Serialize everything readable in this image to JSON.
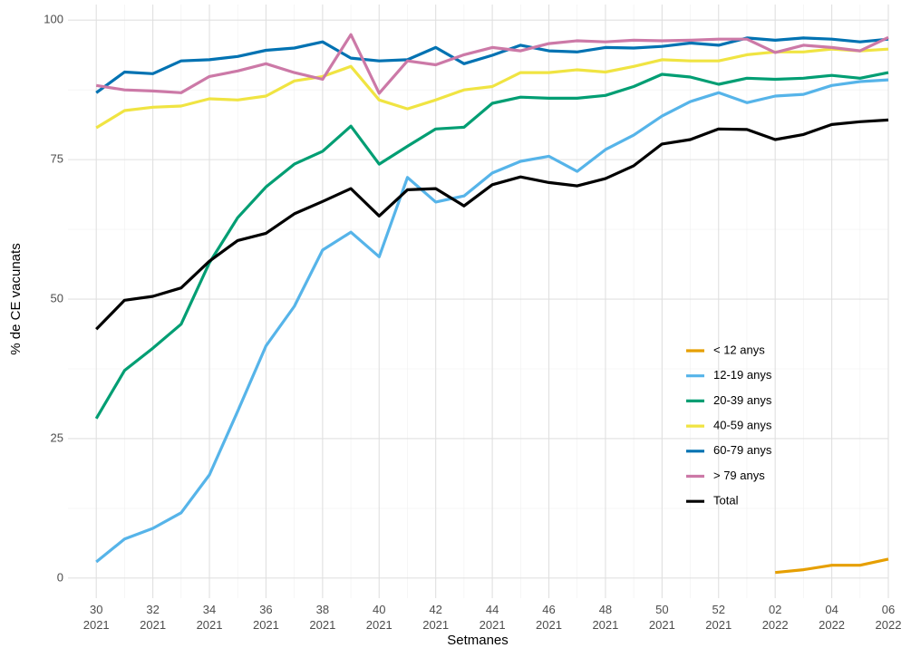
{
  "chart_data": {
    "type": "line",
    "x_label": "Setmanes",
    "y_label": "% de CE vacunats",
    "categories": [
      "30\n2021",
      null,
      "32\n2021",
      null,
      "34\n2021",
      null,
      "36\n2021",
      null,
      "38\n2021",
      null,
      "40\n2021",
      null,
      "42\n2021",
      null,
      "44\n2021",
      null,
      "46\n2021",
      null,
      "48\n2021",
      null,
      "50\n2021",
      null,
      "52\n2021",
      null,
      "02\n2022",
      null,
      "04\n2022",
      null,
      "06\n2022"
    ],
    "ylim": [
      -3.6,
      102.8
    ],
    "yticks": [
      0,
      25,
      50,
      75,
      100
    ],
    "grid": true,
    "series": [
      {
        "name": "< 12 anys",
        "color": "#E69F00",
        "values": [
          null,
          null,
          null,
          null,
          null,
          null,
          null,
          null,
          null,
          null,
          null,
          null,
          null,
          null,
          null,
          null,
          null,
          null,
          null,
          null,
          null,
          null,
          null,
          null,
          1.0,
          1.5,
          2.3,
          2.3,
          3.4
        ]
      },
      {
        "name": "12-19 anys",
        "color": "#56B4E9",
        "values": [
          2.9,
          7.0,
          8.9,
          11.7,
          18.5,
          29.9,
          41.6,
          48.7,
          58.8,
          62.0,
          57.6,
          71.8,
          67.4,
          68.5,
          72.6,
          74.7,
          75.6,
          72.9,
          76.8,
          79.4,
          82.8,
          85.4,
          87.0,
          85.2,
          86.4,
          86.7,
          88.3,
          89.0,
          89.3
        ]
      },
      {
        "name": "20-39 anys",
        "color": "#009E73",
        "values": [
          28.6,
          37.2,
          41.2,
          45.5,
          56.5,
          64.6,
          70.1,
          74.2,
          76.5,
          81.0,
          74.2,
          77.4,
          80.5,
          80.8,
          85.1,
          86.2,
          86.0,
          86.0,
          86.5,
          88.1,
          90.3,
          89.8,
          88.5,
          89.6,
          89.4,
          89.6,
          90.1,
          89.6,
          90.6
        ]
      },
      {
        "name": "40-59 anys",
        "color": "#F0E442",
        "values": [
          80.7,
          83.8,
          84.4,
          84.6,
          85.9,
          85.7,
          86.4,
          89.1,
          89.9,
          91.7,
          85.7,
          84.1,
          85.7,
          87.5,
          88.1,
          90.6,
          90.6,
          91.1,
          90.7,
          91.7,
          92.9,
          92.7,
          92.7,
          93.8,
          94.3,
          94.3,
          94.8,
          94.5,
          94.8
        ]
      },
      {
        "name": "60-79 anys",
        "color": "#0072B2",
        "values": [
          87.0,
          90.7,
          90.4,
          92.7,
          92.9,
          93.5,
          94.6,
          95.0,
          96.1,
          93.2,
          92.7,
          92.9,
          95.1,
          92.2,
          93.7,
          95.5,
          94.5,
          94.3,
          95.1,
          95.0,
          95.3,
          95.9,
          95.5,
          96.8,
          96.4,
          96.8,
          96.6,
          96.1,
          96.6
        ]
      },
      {
        "name": "> 79 anys",
        "color": "#CC79A7",
        "values": [
          88.3,
          87.5,
          87.3,
          87.0,
          89.9,
          90.9,
          92.2,
          90.6,
          89.4,
          97.4,
          86.9,
          92.7,
          92.0,
          93.8,
          95.1,
          94.5,
          95.8,
          96.3,
          96.1,
          96.4,
          96.3,
          96.4,
          96.6,
          96.6,
          94.2,
          95.5,
          95.1,
          94.5,
          96.9
        ]
      },
      {
        "name": "Total",
        "color": "#000000",
        "values": [
          44.6,
          49.8,
          50.5,
          52.0,
          56.8,
          60.5,
          61.8,
          65.3,
          67.5,
          69.8,
          64.9,
          69.6,
          69.8,
          66.7,
          70.5,
          71.9,
          70.9,
          70.3,
          71.6,
          73.9,
          77.8,
          78.6,
          80.5,
          80.4,
          78.6,
          79.5,
          81.3,
          81.8,
          82.1
        ]
      }
    ]
  }
}
